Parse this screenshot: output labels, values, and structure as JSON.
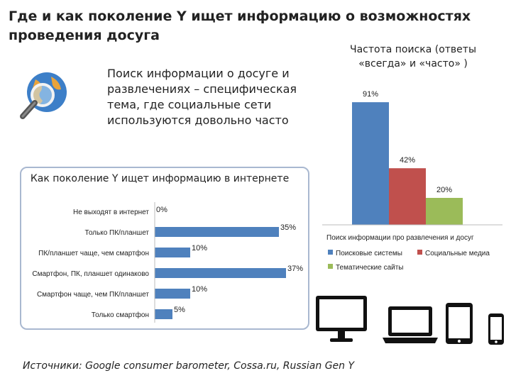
{
  "title": "Где и как поколение Y ищет информацию о возможностях проведения досуга",
  "intro_text": "Поиск информации о досуге и развлечениях – специфическая тема, где социальные сети используются довольно часто",
  "footer": "Источники: Google consumer barometer, Cossa.ru, Russian Gen Y",
  "icons": [
    "globe-magnifier-icon",
    "monitor-icon",
    "laptop-icon",
    "tablet-icon",
    "smartphone-icon"
  ],
  "chart_data": [
    {
      "type": "bar",
      "orientation": "horizontal",
      "title": "Как поколение Y ищет информацию в интернете",
      "categories": [
        "Не выходят в интернет",
        "Только ПК/планшет",
        "ПК/планшет чаще, чем смартфон",
        "Смартфон, ПК, планшет одинаково",
        "Смартфон чаще, чем ПК/планшет",
        "Только смартфон"
      ],
      "values": [
        0,
        35,
        10,
        37,
        10,
        5
      ],
      "value_labels": [
        "0%",
        "35%",
        "10%",
        "37%",
        "10%",
        "5%"
      ],
      "xlim": [
        0,
        40
      ],
      "color": "#4f81bd"
    },
    {
      "type": "bar",
      "title": "Частота поиска (ответы «всегда» и «часто» )",
      "categories": [
        "Поиск информации про развлечения и досуг"
      ],
      "series": [
        {
          "name": "Поисковые системы",
          "values": [
            91
          ],
          "label": "91%",
          "color": "#4f81bd"
        },
        {
          "name": "Социальные медиа",
          "values": [
            42
          ],
          "label": "42%",
          "color": "#c0504d"
        },
        {
          "name": "Тематические сайты",
          "values": [
            20
          ],
          "label": "20%",
          "color": "#9bbb59"
        }
      ],
      "ylim": [
        0,
        100
      ],
      "legend": "bottom"
    }
  ]
}
